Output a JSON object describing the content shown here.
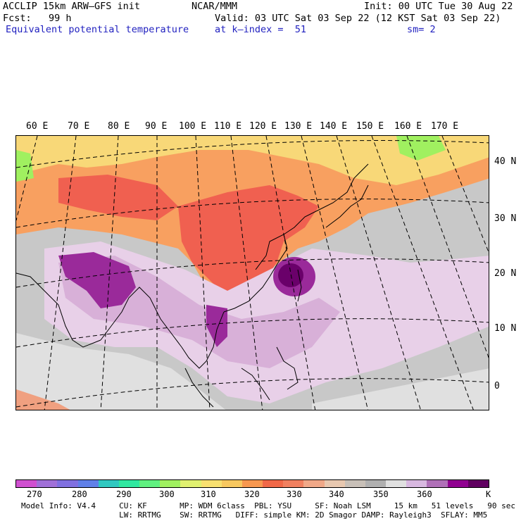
{
  "header": {
    "model": "ACCLIP 15km ARW–GFS init",
    "center": "NCAR/MMM",
    "init": "Init: 00 UTC Tue 30 Aug 22",
    "fcst": "Fcst:   99 h",
    "valid": "Valid: 03 UTC Sat 03 Sep 22 (12 KST Sat 03 Sep 22)",
    "field": "Equivalent potential temperature",
    "level": "at k–index =  51",
    "smooth": "sm= 2"
  },
  "map": {
    "lon_labels": [
      "60 E",
      "70 E",
      "80 E",
      "90 E",
      "100 E",
      "110 E",
      "120 E",
      "130 E",
      "140 E",
      "150 E",
      "160 E",
      "170 E"
    ],
    "lat_labels": [
      "40 N",
      "30 N",
      "20 N",
      "10 N",
      "0"
    ],
    "colors": {
      "purple_dark": "#6a006a",
      "purple": "#9a2a9a",
      "lilac": "#d8b0d8",
      "lilac_light": "#e8d0e8",
      "gray_light": "#e0e0e0",
      "gray": "#c8c8c8",
      "gray_dark": "#a8a8a8",
      "salmon": "#f0a080",
      "red": "#f06050",
      "orange": "#f8a060",
      "yellow": "#f8d878",
      "green": "#a0f060"
    }
  },
  "colorbar": {
    "unit": "K",
    "colors": [
      "#d050d0",
      "#a070d8",
      "#8070e0",
      "#6080e8",
      "#30c8c0",
      "#30e8a0",
      "#60f080",
      "#a0f060",
      "#e0f070",
      "#f8e070",
      "#f8c860",
      "#f89850",
      "#f06848",
      "#f08060",
      "#f0a888",
      "#e8c8b0",
      "#c8c0b8",
      "#b0b0b0",
      "#e0e0e0",
      "#d8b8e0",
      "#b070b8",
      "#900090",
      "#600060"
    ],
    "labels": [
      "270",
      "280",
      "290",
      "300",
      "310",
      "320",
      "330",
      "340",
      "350",
      "360"
    ]
  },
  "footer": {
    "line1": "Model Info: V4.4     CU: KF       MP: WDM 6class  PBL: YSU     SF: Noah LSM     15 km   51 levels   90 sec",
    "line2": "                     LW: RRTMG    SW: RRTMG   DIFF: simple KM: 2D Smagor DAMP: Rayleigh3  SFLAY: MM5"
  }
}
